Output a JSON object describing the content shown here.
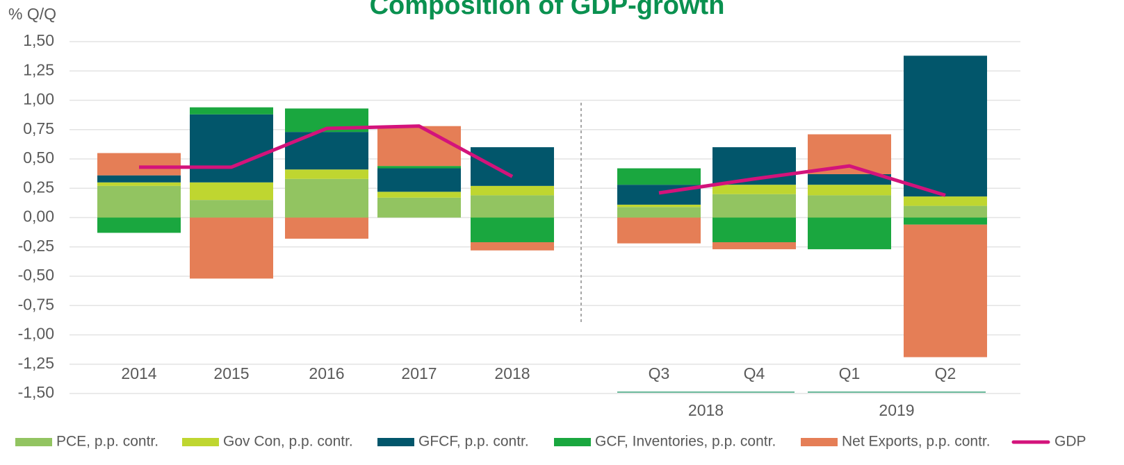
{
  "chart_data": {
    "type": "bar",
    "stacked": true,
    "title": "Composition of GDP-growth",
    "y_label": "% Q/Q",
    "categories": [
      "2014",
      "2015",
      "2016",
      "2017",
      "2018",
      null,
      "Q3",
      "Q4",
      "Q1",
      "Q2"
    ],
    "groups": [
      "2018",
      "2019"
    ],
    "ylim": [
      -1.5,
      1.5
    ],
    "yticks": [
      {
        "value": 1.5,
        "label": "1,50"
      },
      {
        "value": 1.25,
        "label": "1,25"
      },
      {
        "value": 1.0,
        "label": "1,00"
      },
      {
        "value": 0.75,
        "label": "0,75"
      },
      {
        "value": 0.5,
        "label": "0,50"
      },
      {
        "value": 0.25,
        "label": "0,25"
      },
      {
        "value": 0,
        "label": "0,00"
      },
      {
        "value": -0.25,
        "label": "-0,25"
      },
      {
        "value": -0.5,
        "label": "-0,50"
      },
      {
        "value": -0.75,
        "label": "-0,75"
      },
      {
        "value": -1.0,
        "label": "-1,00"
      },
      {
        "value": -1.25,
        "label": "-1,25"
      },
      {
        "value": -1.5,
        "label": "-1,50"
      }
    ],
    "grid": true,
    "legend": "bottom",
    "series": [
      {
        "name": "PCE, p.p. contr.",
        "color": "#92c461",
        "values": [
          0.27,
          0.15,
          0.33,
          0.17,
          0.19,
          null,
          0.09,
          0.2,
          0.19,
          0.1
        ]
      },
      {
        "name": "Gov Con, p.p. contr.",
        "color": "#bfd630",
        "values": [
          0.03,
          0.15,
          0.08,
          0.05,
          0.08,
          null,
          0.02,
          0.08,
          0.09,
          0.08
        ]
      },
      {
        "name": "GFCF, p.p. contr.",
        "color": "#02566b",
        "values": [
          0.06,
          0.58,
          0.32,
          0.2,
          0.33,
          null,
          0.17,
          0.32,
          0.09,
          1.2
        ]
      },
      {
        "name": "GCF, Inventories, p.p. contr.",
        "color": "#1aa73f",
        "values": [
          -0.13,
          0.06,
          0.2,
          0.02,
          -0.21,
          null,
          0.14,
          -0.21,
          -0.27,
          -0.06
        ]
      },
      {
        "name": "Net Exports, p.p. contr.",
        "color": "#e57e56",
        "values": [
          0.19,
          -0.52,
          -0.18,
          0.34,
          -0.07,
          null,
          -0.22,
          -0.06,
          0.34,
          -1.13
        ]
      },
      {
        "name": "GDP",
        "type": "line",
        "color": "#d3137b",
        "values": [
          0.43,
          0.43,
          0.76,
          0.78,
          0.35,
          null,
          0.21,
          0.33,
          0.44,
          0.19
        ]
      }
    ]
  }
}
